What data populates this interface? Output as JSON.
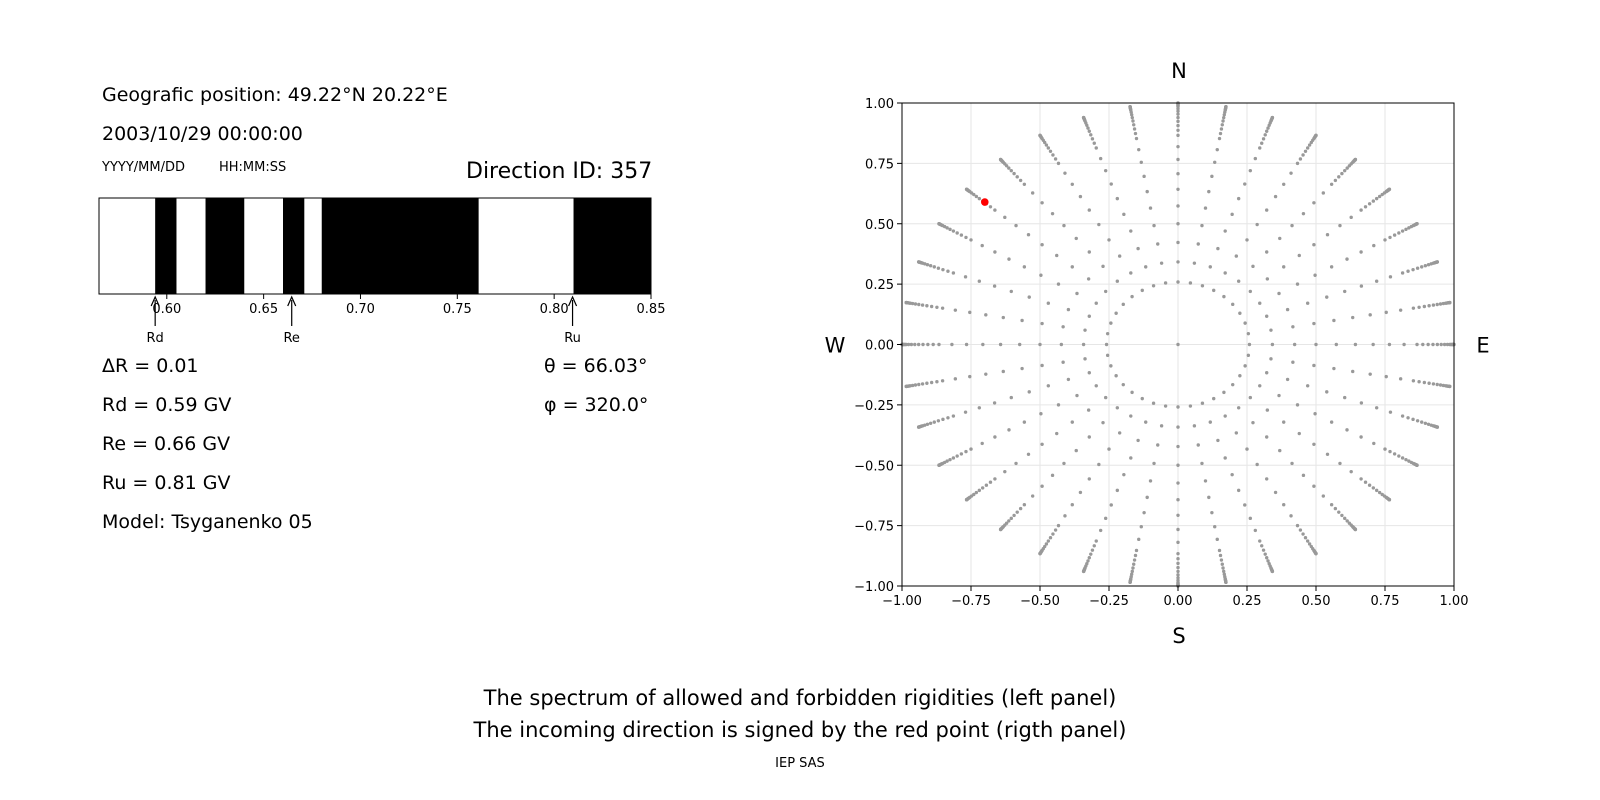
{
  "left_panel": {
    "position": "Geografic position: 49.22°N 20.22°E",
    "datetime": "2003/10/29 00:00:00",
    "date_format": "YYYY/MM/DD",
    "time_format": "HH:MM:SS",
    "direction_id": "Direction ID: 357",
    "delta_r": "ΔR = 0.01",
    "rd": "Rd = 0.59 GV",
    "re": "Re = 0.66 GV",
    "ru": "Ru = 0.81 GV",
    "model": "Model: Tsyganenko 05",
    "theta": "θ = 66.03°",
    "phi": "φ = 320.0°"
  },
  "caption": {
    "line1": "The spectrum of allowed and forbidden rigidities (left panel)",
    "line2": "The incoming direction is signed by the red point (rigth panel)",
    "footer": "IEP SAS"
  },
  "chart_data": [
    {
      "type": "bar",
      "description_role": "rigidity spectrum",
      "xlim": [
        0.565,
        0.85
      ],
      "xticks": [
        "0.60",
        "0.65",
        "0.70",
        "0.75",
        "0.80",
        "0.85"
      ],
      "tick_values": [
        0.6,
        0.65,
        0.7,
        0.75,
        0.8,
        0.85
      ],
      "forbidden_intervals": [
        [
          0.594,
          0.605
        ],
        [
          0.62,
          0.64
        ],
        [
          0.66,
          0.671
        ],
        [
          0.68,
          0.761
        ],
        [
          0.81,
          0.85
        ]
      ],
      "colors": {
        "forbidden": "#000000",
        "allowed": "#ffffff"
      },
      "markers": [
        {
          "label": "Rd",
          "value": 0.594
        },
        {
          "label": "Re",
          "value": 0.6645
        },
        {
          "label": "Ru",
          "value": 0.8095
        }
      ]
    },
    {
      "type": "scatter",
      "description_role": "incoming directions",
      "xlim": [
        -1.0,
        1.0
      ],
      "ylim": [
        -1.0,
        1.0
      ],
      "xticks": [
        "−1.00",
        "−0.75",
        "−0.50",
        "−0.25",
        "0.00",
        "0.25",
        "0.50",
        "0.75",
        "1.00"
      ],
      "yticks": [
        "1.00",
        "0.75",
        "0.50",
        "0.25",
        "0.00",
        "−0.25",
        "−0.50",
        "−0.75",
        "−1.00"
      ],
      "tick_values": [
        -1.0,
        -0.75,
        -0.5,
        -0.25,
        0.0,
        0.25,
        0.5,
        0.75,
        1.0
      ],
      "grid": true,
      "compass": {
        "north": "N",
        "south": "S",
        "west": "W",
        "east": "E"
      },
      "grid_points": {
        "spokes": 36,
        "theta_min_deg": 0,
        "theta_max_deg": 90,
        "color": "#999999"
      },
      "highlight": {
        "x": -0.7,
        "y": 0.59,
        "color": "#ff0000"
      }
    }
  ]
}
